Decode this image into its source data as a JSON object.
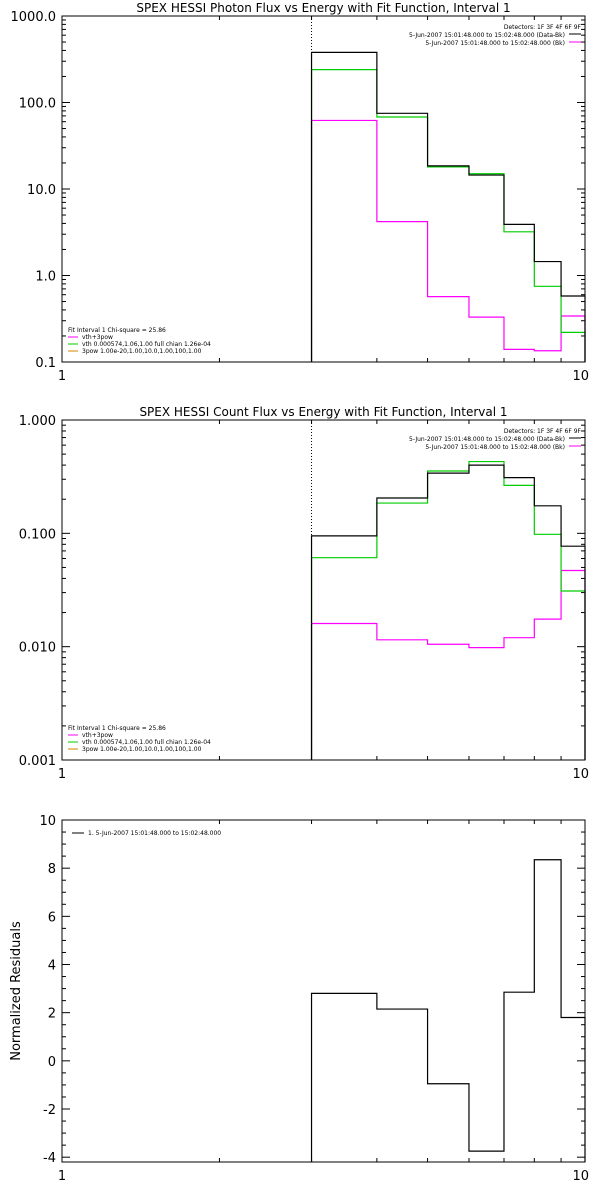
{
  "colors": {
    "data": "#000000",
    "total": "#00cc00",
    "component": "#ff00ff",
    "axes": "#000000"
  },
  "chart_data": [
    {
      "type": "line",
      "title": "SPEX HESSI Photon Flux vs Energy with Fit Function, Interval 1",
      "xscale": "log",
      "yscale": "log",
      "xlim": [
        1,
        10
      ],
      "ylim": [
        0.1,
        1000
      ],
      "xticks": [
        "1",
        "10"
      ],
      "yticks": [
        "0.1",
        "1.0",
        "10.0",
        "100.0",
        "1000.0"
      ],
      "xlabel": "",
      "ylabel": "",
      "marker_x": 3,
      "header_lines": [
        "Detectors: 1F 3F 4F 6F 9F",
        "5-Jun-2007 15:01:48.000 to 15:02:48.000 (Data-Bk)",
        "5-Jun-2007 15:01:48.000 to 15:02:48.000 (Bk)"
      ],
      "fit_info": {
        "title": "Fit Interval 1    Chi-square = 25.86",
        "lines": [
          "vth+3pow",
          "vth 0.000574,1.06,1.00  full chian 1.26e-04",
          "3pow 1.00e-20,1.00,10.0,1.00,100,1.00"
        ]
      },
      "bin_edges": [
        3,
        4,
        5,
        6,
        7,
        8,
        9,
        10
      ],
      "series": [
        {
          "name": "5-Jun-2007 15:01:48.000 to 15:02:48.000 (Data-Bk)",
          "values": [
            380,
            75,
            18.5,
            14.5,
            3.9,
            1.45,
            0.58
          ]
        },
        {
          "name": "vth+3pow",
          "values": [
            240,
            68,
            18.0,
            15.0,
            3.2,
            0.75,
            0.22
          ]
        },
        {
          "name": "5-Jun-2007 15:01:48.000 to 15:02:48.000 (Bk)",
          "values": [
            62,
            4.2,
            0.57,
            0.33,
            0.14,
            0.135,
            0.34
          ]
        }
      ]
    },
    {
      "type": "line",
      "title": "SPEX HESSI Count Flux vs Energy with Fit Function, Interval 1",
      "xscale": "log",
      "yscale": "log",
      "xlim": [
        1,
        10
      ],
      "ylim": [
        0.001,
        1
      ],
      "xticks": [
        "1",
        "10"
      ],
      "yticks": [
        "0.001",
        "0.010",
        "0.100",
        "1.000"
      ],
      "xlabel": "",
      "ylabel": "",
      "marker_x": 3,
      "header_lines": [
        "Detectors: 1F 3F 4F 6F 9F",
        "5-Jun-2007 15:01:48.000 to 15:02:48.000 (Data-Bk)",
        "5-Jun-2007 15:01:48.000 to 15:02:48.000 (Bk)"
      ],
      "fit_info": {
        "title": "Fit Interval 1    Chi-square = 25.86",
        "lines": [
          "vth+3pow",
          "vth 0.000574,1.06,1.00  full chian 1.26e-04",
          "3pow 1.00e-20,1.00,10.0,1.00,100,1.00"
        ]
      },
      "bin_edges": [
        3,
        4,
        5,
        6,
        7,
        8,
        9,
        10
      ],
      "series": [
        {
          "name": "5-Jun-2007 15:01:48.000 to 15:02:48.000 (Data-Bk)",
          "values": [
            0.095,
            0.205,
            0.34,
            0.4,
            0.31,
            0.175,
            0.077
          ]
        },
        {
          "name": "vth+3pow",
          "values": [
            0.061,
            0.185,
            0.355,
            0.43,
            0.265,
            0.098,
            0.031
          ]
        },
        {
          "name": "5-Jun-2007 15:01:48.000 to 15:02:48.000 (Bk)",
          "values": [
            0.016,
            0.0115,
            0.0105,
            0.0098,
            0.012,
            0.0175,
            0.047
          ]
        }
      ]
    },
    {
      "type": "line",
      "title": "",
      "xscale": "log",
      "yscale": "linear",
      "xlim": [
        1,
        10
      ],
      "ylim": [
        -4.2,
        10
      ],
      "xticks": [
        "1",
        "10"
      ],
      "yticks": [
        "-4",
        "-2",
        "0",
        "2",
        "4",
        "6",
        "8",
        "10"
      ],
      "xlabel": "",
      "ylabel": "Normalized Residuals",
      "legend": "1.  5-Jun-2007 15:01:48.000 to 15:02:48.000",
      "bin_edges": [
        3,
        4,
        5,
        6,
        7,
        8,
        9,
        10
      ],
      "series": [
        {
          "name": "1.  5-Jun-2007 15:01:48.000 to 15:02:48.000",
          "values": [
            2.8,
            2.15,
            -0.95,
            -3.75,
            2.85,
            8.35,
            1.8
          ]
        }
      ]
    }
  ]
}
